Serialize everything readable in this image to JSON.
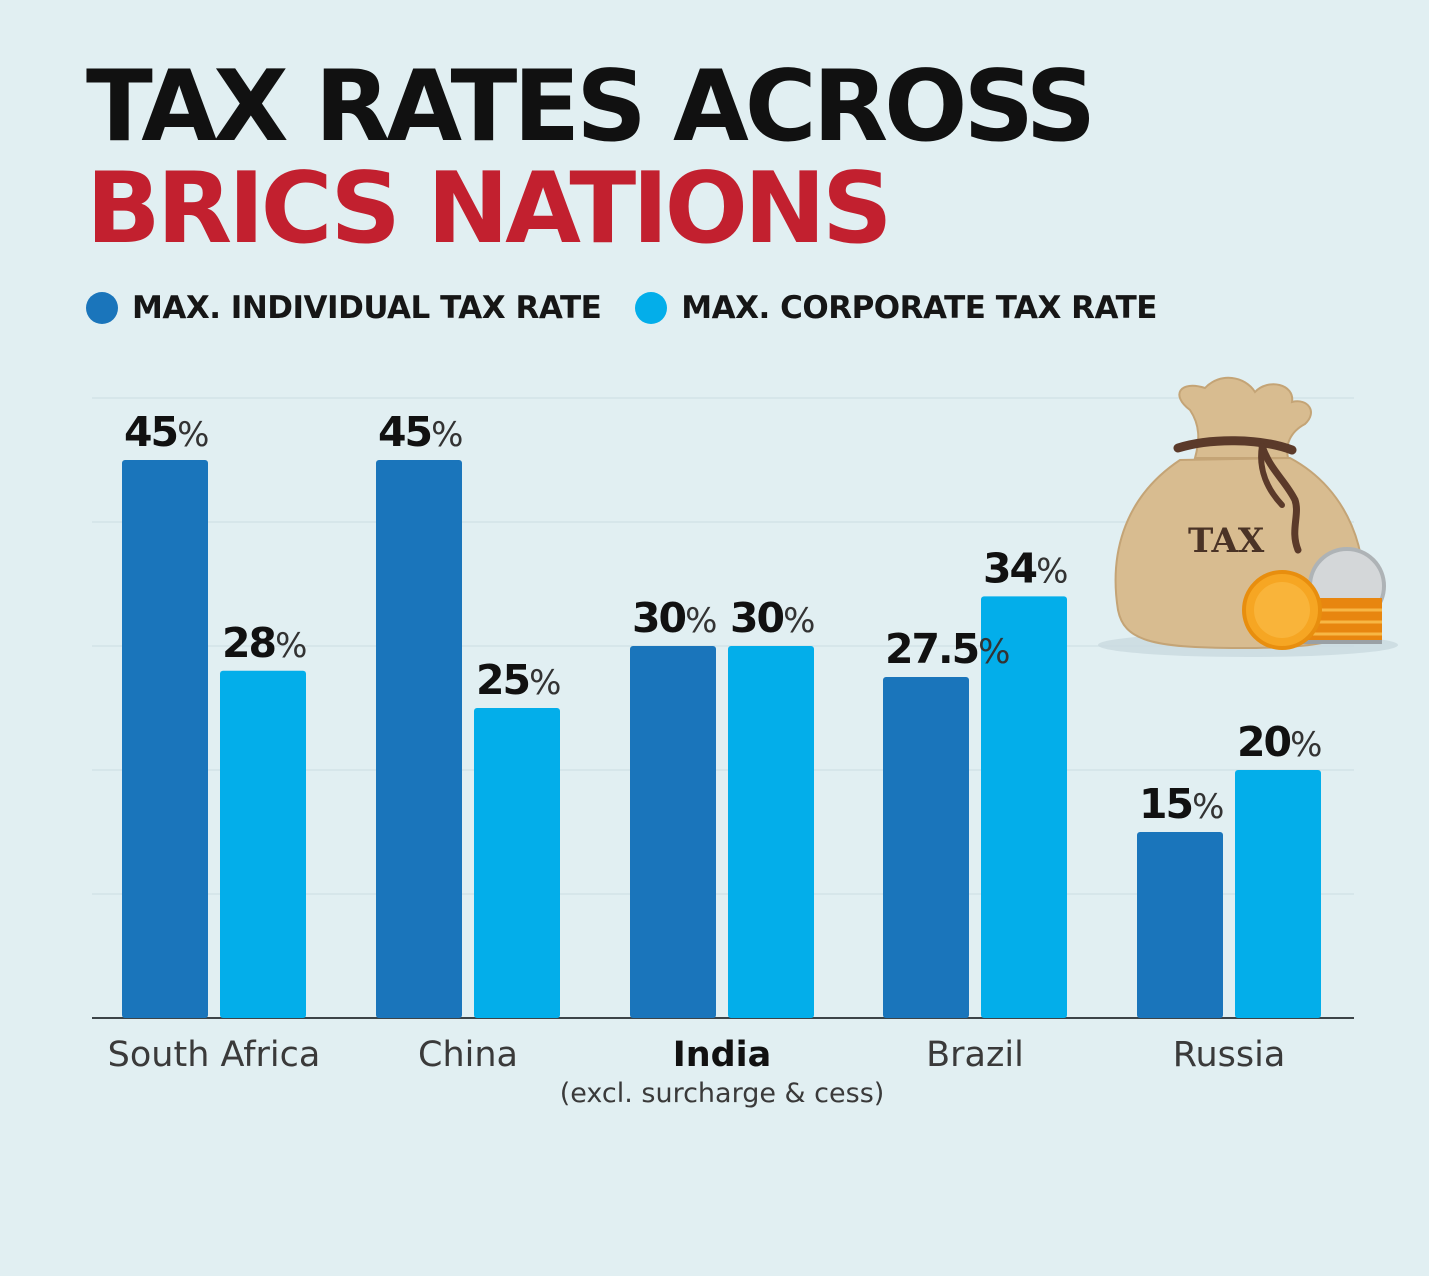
{
  "title": {
    "line1": "TAX RATES ACROSS",
    "line2": "BRICS NATIONS"
  },
  "legend": [
    {
      "label": "MAX. INDIVIDUAL TAX RATE",
      "color": "#1a75bb"
    },
    {
      "label": "MAX. CORPORATE TAX RATE",
      "color": "#03aeea"
    }
  ],
  "chart_data": {
    "type": "bar",
    "title": "TAX RATES ACROSS BRICS NATIONS",
    "xlabel": "",
    "ylabel": "",
    "ylim": [
      0,
      50
    ],
    "categories": [
      "South Africa",
      "China",
      "India",
      "Brazil",
      "Russia"
    ],
    "category_notes": [
      "",
      "",
      "(excl. surcharge & cess)",
      "",
      ""
    ],
    "highlight_category": "India",
    "unit_suffix": "%",
    "series": [
      {
        "name": "MAX. INDIVIDUAL TAX RATE",
        "color": "#1a75bb",
        "values": [
          45,
          45,
          30,
          27.5,
          15
        ]
      },
      {
        "name": "MAX. CORPORATE TAX RATE",
        "color": "#03aeea",
        "values": [
          28,
          25,
          30,
          34,
          20
        ]
      }
    ]
  },
  "illustration": {
    "bag_label": "TAX",
    "icon": "money-bag-icon"
  }
}
